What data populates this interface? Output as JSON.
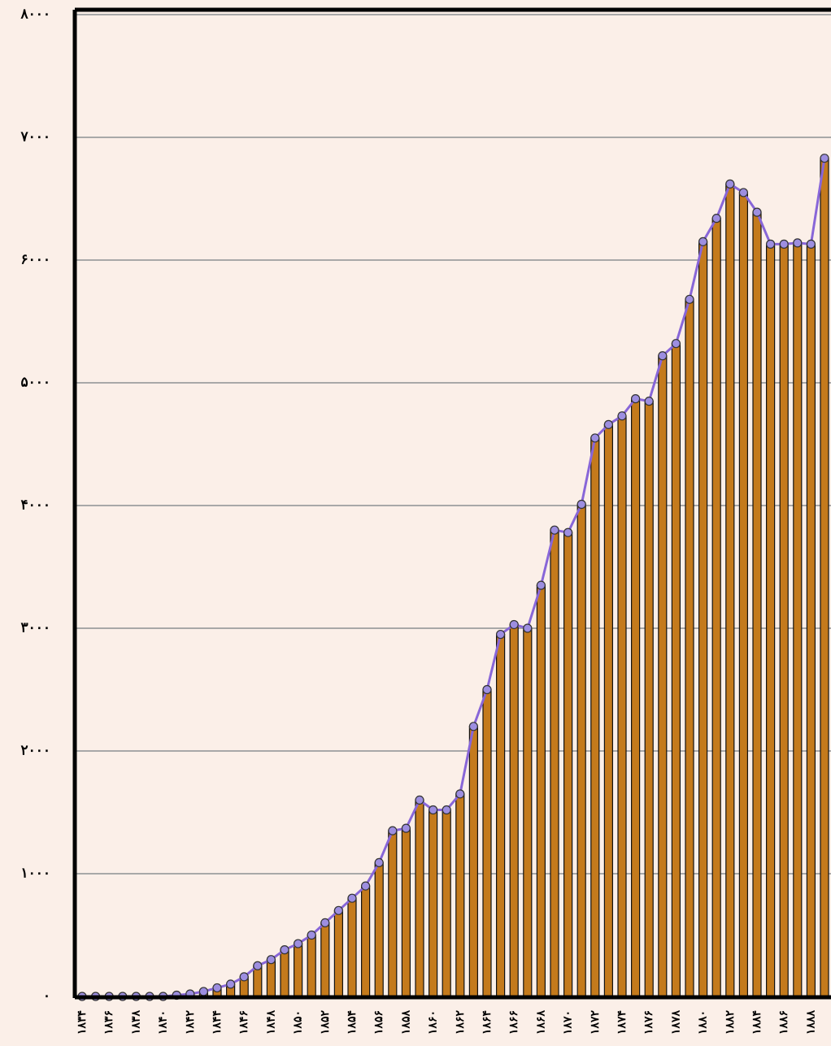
{
  "chart_data": {
    "type": "bar",
    "categories": [
      "۱۸۳۴",
      null,
      "۱۸۳۶",
      null,
      "۱۸۳۸",
      null,
      "۱۸۴۰",
      null,
      "۱۸۴۲",
      null,
      "۱۸۴۴",
      null,
      "۱۸۴۶",
      null,
      "۱۸۴۸",
      null,
      "۱۸۵۰",
      null,
      "۱۸۵۲",
      null,
      "۱۸۵۴",
      null,
      "۱۸۵۶",
      null,
      "۱۸۵۸",
      null,
      "۱۸۶۰",
      null,
      "۱۸۶۲",
      null,
      "۱۸۶۴",
      null,
      "۱۸۶۶",
      null,
      "۱۸۶۸",
      null,
      "۱۸۷۰",
      null,
      "۱۸۷۲",
      null,
      "۱۸۷۴",
      null,
      "۱۸۷۶",
      null,
      "۱۸۷۸",
      null,
      "۱۸۸۰",
      null,
      "۱۸۸۲",
      null,
      "۱۸۸۴",
      null,
      "۱۸۸۶",
      null,
      "۱۸۸۸",
      null
    ],
    "values": [
      0,
      0,
      0,
      0,
      0,
      0,
      0,
      10,
      20,
      40,
      70,
      100,
      160,
      250,
      300,
      380,
      430,
      500,
      600,
      700,
      800,
      900,
      1090,
      1350,
      1370,
      1600,
      1520,
      1520,
      1650,
      2200,
      2500,
      2950,
      3030,
      3000,
      3350,
      3800,
      3780,
      4010,
      4550,
      4660,
      4730,
      4870,
      4850,
      5220,
      5320,
      5680,
      6150,
      6340,
      6620,
      6550,
      6390,
      6130,
      6130,
      6140,
      6130,
      6830
    ],
    "color": "#c47a1c",
    "line_color": "#8866d8",
    "ylim": [
      0,
      8000
    ],
    "yticks": [
      {
        "value": 0,
        "label": "۰"
      },
      {
        "value": 1000,
        "label": "۱۰۰۰"
      },
      {
        "value": 2000,
        "label": "۲۰۰۰"
      },
      {
        "value": 3000,
        "label": "۳۰۰۰"
      },
      {
        "value": 4000,
        "label": "۴۰۰۰"
      },
      {
        "value": 5000,
        "label": "۵۰۰۰"
      },
      {
        "value": 6000,
        "label": "۶۰۰۰"
      },
      {
        "value": 7000,
        "label": "۷۰۰۰"
      },
      {
        "value": 8000,
        "label": "۸۰۰۰"
      }
    ],
    "grid": true
  }
}
